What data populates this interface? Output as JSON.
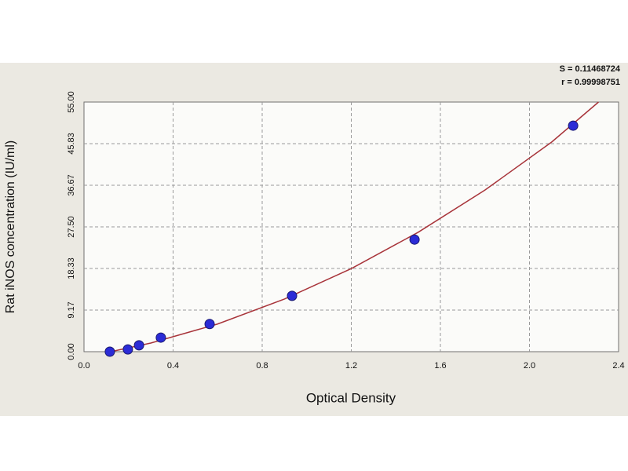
{
  "chart_data": {
    "type": "scatter",
    "xlabel": "Optical Density",
    "ylabel": "Rat iNOS concentration (IU/ml)",
    "annotations": [
      "S = 0.11468724",
      "r = 0.99998751"
    ],
    "x": [
      0.116,
      0.197,
      0.247,
      0.345,
      0.564,
      0.934,
      1.484,
      2.196
    ],
    "values": [
      0,
      0.5,
      1.4,
      3.1,
      6.1,
      12.3,
      24.7,
      49.8
    ],
    "color": "#2b2bd6",
    "curve": {
      "color": "#a8343a",
      "x": [
        0.12,
        0.3,
        0.6,
        0.9,
        1.2,
        1.5,
        1.8,
        2.1,
        2.31
      ],
      "y": [
        0,
        1.9,
        6.1,
        11.6,
        18.3,
        26.3,
        35.6,
        46.2,
        55
      ]
    },
    "xlim": [
      0,
      2.4
    ],
    "ylim": [
      0,
      55
    ],
    "xticks": [
      {
        "value": 0,
        "label": "0.0"
      },
      0.4,
      0.8,
      1.2,
      1.6,
      {
        "value": 2,
        "label": "2.0"
      },
      2.4
    ],
    "yticks": [
      {
        "value": 0,
        "label": "0.00"
      },
      9.17,
      18.33,
      {
        "value": 27.5,
        "label": "27.50"
      },
      36.67,
      45.83,
      {
        "value": 55,
        "label": "55.00"
      }
    ],
    "grid": true
  }
}
